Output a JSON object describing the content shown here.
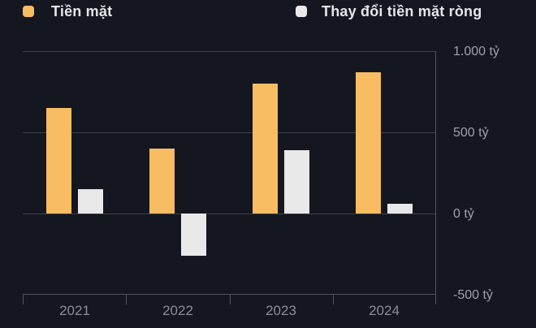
{
  "legend": {
    "items": [
      {
        "label": "Tiền mặt",
        "color": "#F8BC62"
      },
      {
        "label": "Thay đổi tiền mặt ròng",
        "color": "#E9E9E9"
      }
    ]
  },
  "chart_data": {
    "type": "bar",
    "title": "",
    "categories": [
      "2021",
      "2022",
      "2023",
      "2024"
    ],
    "series": [
      {
        "name": "Tiền mặt",
        "color": "#F8BC62",
        "values": [
          650,
          400,
          800,
          870
        ]
      },
      {
        "name": "Thay đổi tiền mặt ròng",
        "color": "#E9E9E9",
        "values": [
          150,
          -260,
          390,
          60
        ]
      }
    ],
    "unit": "tỷ",
    "yticks": [
      {
        "value": 1000,
        "label": "1.000 tỷ"
      },
      {
        "value": 500,
        "label": "500 tỷ"
      },
      {
        "value": 0,
        "label": "0 tỷ"
      },
      {
        "value": -500,
        "label": "-500 tỷ"
      }
    ],
    "ylim": [
      -500,
      1000
    ],
    "grid": true,
    "legend_position": "top",
    "y_axis_side": "right"
  },
  "colors": {
    "background": "#14171F",
    "gridline": "#3C424D",
    "axis_line": "#4E545F",
    "y_tick_label": "#9CA1A9",
    "x_tick_label": "#8A8F97",
    "legend_text": "#E4E6EA"
  }
}
